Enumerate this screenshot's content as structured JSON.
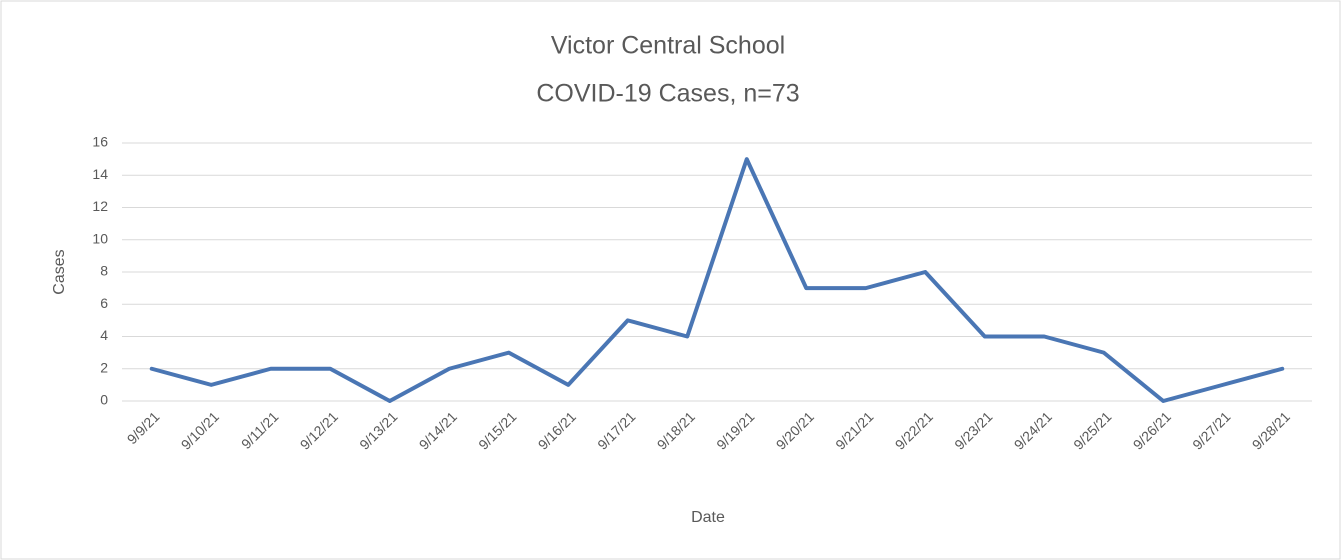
{
  "chart_data": {
    "type": "line",
    "title": [
      "Victor Central School",
      "COVID-19 Cases, n=73"
    ],
    "x_label": "Date",
    "y_label": "Cases",
    "categories": [
      "9/9/21",
      "9/10/21",
      "9/11/21",
      "9/12/21",
      "9/13/21",
      "9/14/21",
      "9/15/21",
      "9/16/21",
      "9/17/21",
      "9/18/21",
      "9/19/21",
      "9/20/21",
      "9/21/21",
      "9/22/21",
      "9/23/21",
      "9/24/21",
      "9/25/21",
      "9/26/21",
      "9/27/21",
      "9/28/21"
    ],
    "values": [
      2,
      1,
      2,
      2,
      0,
      2,
      3,
      1,
      5,
      4,
      15,
      7,
      7,
      8,
      4,
      4,
      3,
      0,
      1,
      2
    ],
    "color": "#4a76b4",
    "ylim": [
      0,
      16
    ],
    "yticks": [
      0,
      2,
      4,
      6,
      8,
      10,
      12,
      14,
      16
    ],
    "grid": true
  }
}
